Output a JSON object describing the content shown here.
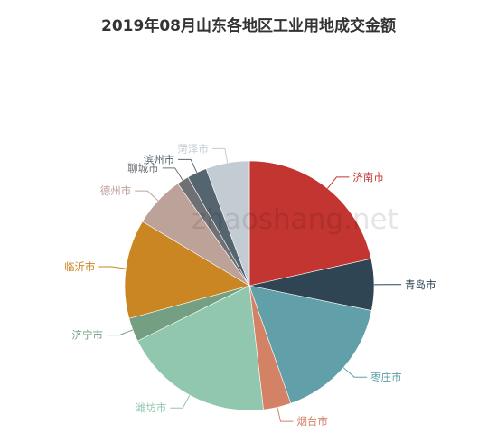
{
  "chart_data": {
    "type": "pie",
    "title": "2019年08月山东各地区工业用地成交金额",
    "watermark": "zhaoshang.net",
    "slices": [
      {
        "label": "济南市",
        "value": 21.0,
        "color": "#c23531"
      },
      {
        "label": "青岛市",
        "value": 6.5,
        "color": "#2f4554"
      },
      {
        "label": "枣庄市",
        "value": 16.0,
        "color": "#61a0a8"
      },
      {
        "label": "烟台市",
        "value": 3.5,
        "color": "#d48265"
      },
      {
        "label": "潍坊市",
        "value": 19.0,
        "color": "#91c7ae"
      },
      {
        "label": "济宁市",
        "value": 3.0,
        "color": "#749f83"
      },
      {
        "label": "临沂市",
        "value": 12.5,
        "color": "#ca8622"
      },
      {
        "label": "德州市",
        "value": 6.5,
        "color": "#bda29a"
      },
      {
        "label": "聊城市",
        "value": 1.5,
        "color": "#6e7074"
      },
      {
        "label": "滨州市",
        "value": 2.5,
        "color": "#546570"
      },
      {
        "label": "菏泽市",
        "value": 5.5,
        "color": "#c4ccd3"
      }
    ]
  }
}
